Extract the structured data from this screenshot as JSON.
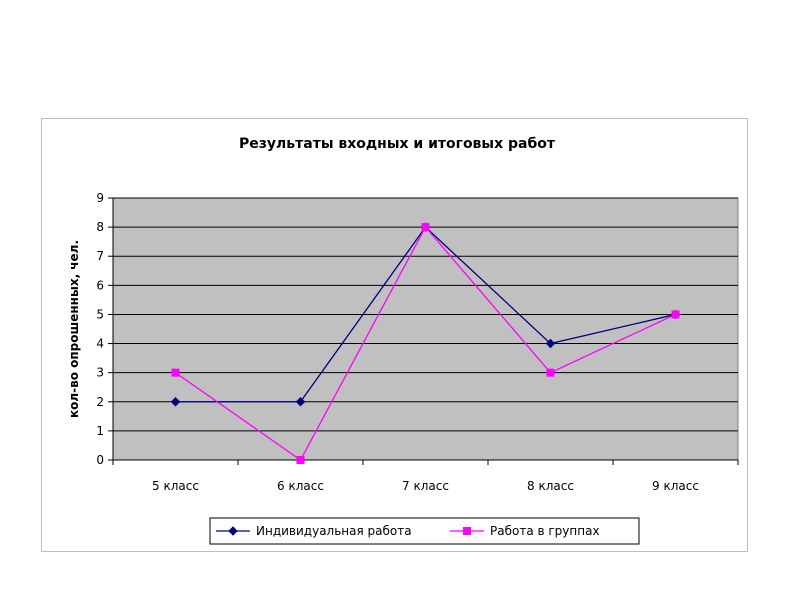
{
  "chart_data": {
    "type": "line",
    "title": "Результаты входных и итоговых работ",
    "xlabel": "",
    "ylabel": "кол-во опрошенных, чел.",
    "categories": [
      "5 класс",
      "6 класс",
      "7 класс",
      "8 класс",
      "9 класс"
    ],
    "ylim": [
      0,
      9
    ],
    "yticks": [
      0,
      1,
      2,
      3,
      4,
      5,
      6,
      7,
      8,
      9
    ],
    "grid": true,
    "legend": "bottom",
    "plot_background": "#c0c0c0",
    "series": [
      {
        "name": "Индивидуальная работа",
        "values": [
          2,
          2,
          8,
          4,
          5
        ],
        "color": "#000080",
        "marker": "diamond"
      },
      {
        "name": "Работа в группах",
        "values": [
          3,
          0,
          8,
          3,
          5
        ],
        "color": "#ff00ff",
        "marker": "square"
      }
    ]
  }
}
